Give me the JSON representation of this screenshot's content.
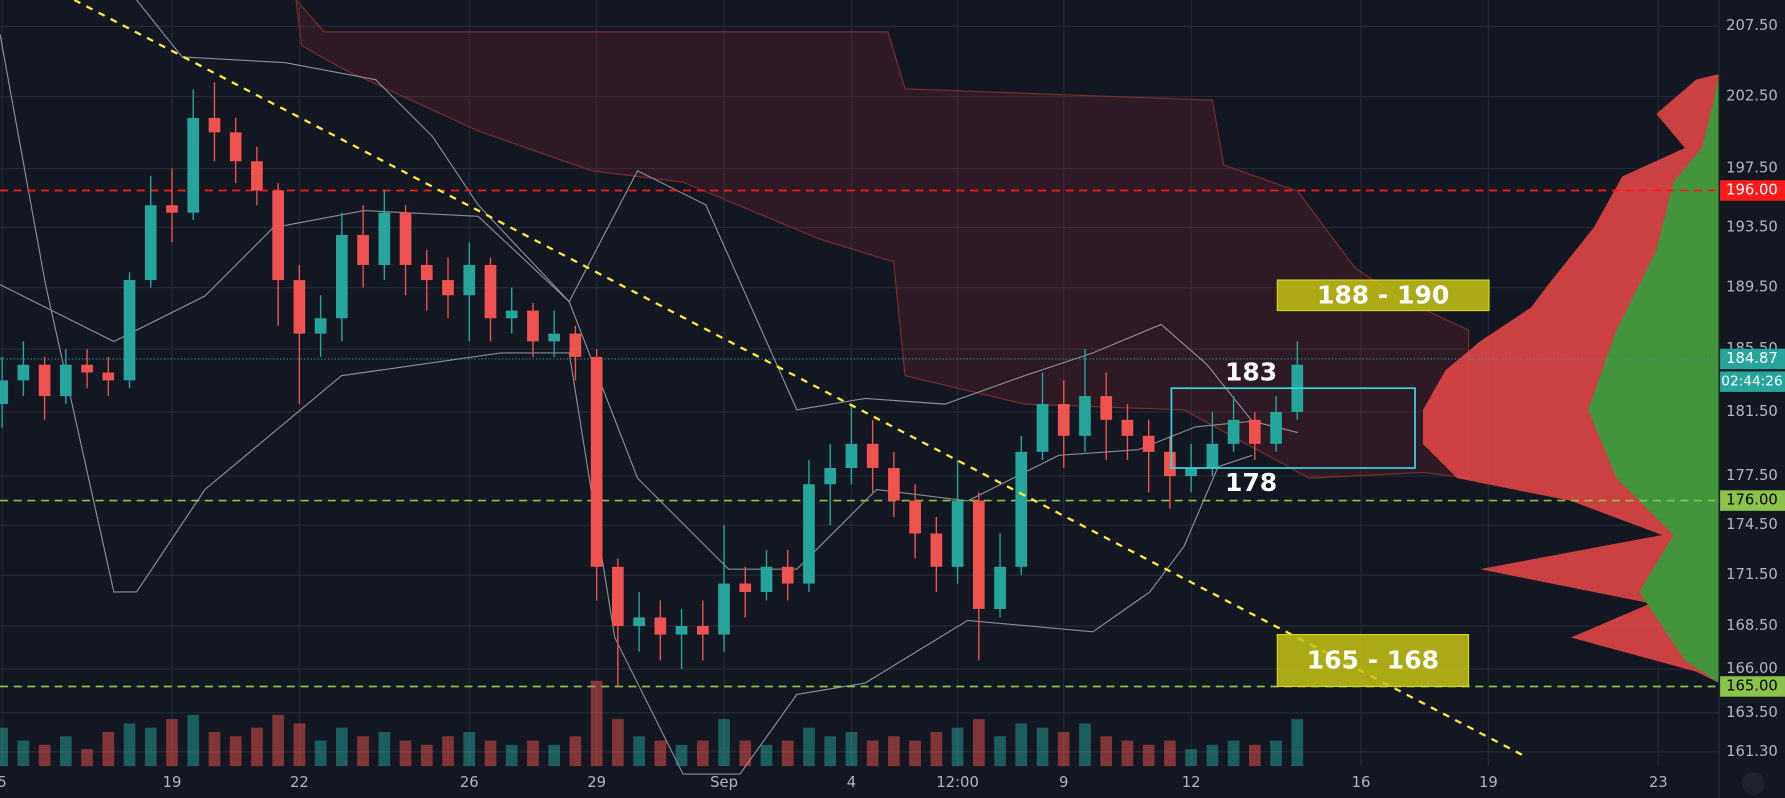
{
  "chart_data": {
    "type": "candlestick",
    "log_scale": true,
    "grid": true,
    "up_color": "#26a69a",
    "down_color": "#ef5350",
    "xlim": [
      -0.05,
      40.43
    ],
    "ylim": [
      160.5,
      209.4
    ],
    "xticks": [
      {
        "value": 0,
        "label": "5"
      },
      {
        "value": 4,
        "label": "19"
      },
      {
        "value": 7,
        "label": "22"
      },
      {
        "value": 11,
        "label": "26"
      },
      {
        "value": 14,
        "label": "29"
      },
      {
        "value": 17,
        "label": "Sep"
      },
      {
        "value": 20,
        "label": "4"
      },
      {
        "value": 22.5,
        "label": "12:00"
      },
      {
        "value": 25,
        "label": "9"
      },
      {
        "value": 28,
        "label": "12"
      },
      {
        "value": 32,
        "label": "16"
      },
      {
        "value": 35,
        "label": "19"
      },
      {
        "value": 39,
        "label": "23"
      }
    ],
    "yticks": [
      {
        "value": 207.5,
        "label": "207.50"
      },
      {
        "value": 202.5,
        "label": "202.50"
      },
      {
        "value": 197.5,
        "label": "197.50"
      },
      {
        "value": 193.5,
        "label": "193.50"
      },
      {
        "value": 189.5,
        "label": "189.50"
      },
      {
        "value": 185.5,
        "label": "185.50"
      },
      {
        "value": 181.5,
        "label": "181.50"
      },
      {
        "value": 177.5,
        "label": "177.50"
      },
      {
        "value": 174.5,
        "label": "174.50"
      },
      {
        "value": 171.5,
        "label": "171.50"
      },
      {
        "value": 168.5,
        "label": "168.50"
      },
      {
        "value": 166,
        "label": "166.00"
      },
      {
        "value": 163.5,
        "label": "163.50"
      },
      {
        "value": 161.3,
        "label": "161.30"
      }
    ],
    "candles": {
      "x": [
        0,
        0.5,
        1,
        1.5,
        2,
        2.5,
        3,
        3.5,
        4,
        4.5,
        5,
        5.5,
        6,
        6.5,
        7,
        7.5,
        8,
        8.5,
        9,
        9.5,
        10,
        10.5,
        11,
        11.5,
        12,
        12.5,
        13,
        13.5,
        14,
        14.5,
        15,
        15.5,
        16,
        16.5,
        17,
        17.5,
        18,
        18.5,
        19,
        19.5,
        20,
        20.5,
        21,
        21.5,
        22,
        22.5,
        23,
        23.5,
        24,
        24.5,
        25,
        25.5,
        26,
        26.5,
        27,
        27.5,
        28,
        28.5,
        29,
        29.5,
        30,
        30.5
      ],
      "open": [
        182,
        183.5,
        184.5,
        182.5,
        184.5,
        184,
        183.5,
        190,
        195,
        194.5,
        201,
        200,
        198,
        196,
        190,
        186.5,
        187.5,
        193,
        191,
        194.5,
        191,
        190,
        189,
        191,
        187.5,
        188,
        186,
        186.5,
        185,
        172,
        168.5,
        169,
        168,
        168.5,
        168,
        171,
        170.5,
        172,
        171,
        177,
        178,
        179.5,
        178,
        176,
        174,
        172,
        176,
        169.5,
        172,
        179,
        182,
        180,
        182.5,
        181,
        180,
        179,
        177.5,
        178,
        179.5,
        181,
        179.5,
        181.5
      ],
      "high": [
        185,
        186,
        185,
        185.5,
        185.5,
        185,
        190.5,
        197,
        197.5,
        203,
        203.5,
        201,
        199,
        196.5,
        191,
        189,
        194.5,
        195,
        196,
        195,
        192,
        191.5,
        192.5,
        191.5,
        189.5,
        188.5,
        188,
        187,
        185.5,
        172.5,
        170.5,
        170,
        169.5,
        170,
        174.5,
        172,
        173,
        173,
        178.5,
        179.5,
        182,
        181,
        179,
        177,
        175,
        178.5,
        176.5,
        174,
        180,
        184,
        183.5,
        185.5,
        184,
        182,
        181,
        180,
        179.5,
        181.5,
        182.5,
        181.5,
        182.5,
        186
      ],
      "low": [
        180.5,
        182.5,
        181,
        182,
        183,
        182.5,
        183,
        189.5,
        192.5,
        194,
        198,
        196.5,
        195,
        187,
        182,
        185,
        186,
        189.5,
        190,
        189,
        188,
        187.5,
        186,
        186,
        186.5,
        185,
        185,
        183.5,
        170,
        165,
        167,
        166.5,
        166,
        166.5,
        167,
        169,
        170,
        170,
        170.5,
        174.5,
        177,
        176.5,
        175,
        172.5,
        170.5,
        171,
        166.5,
        169,
        171.5,
        178.5,
        178,
        179,
        178.5,
        178.5,
        176.5,
        175.5,
        176.5,
        177.5,
        179,
        178.5,
        179,
        181
      ],
      "close": [
        183.5,
        184.5,
        182.5,
        184.5,
        184,
        183.5,
        190,
        195,
        194.5,
        201,
        200,
        198,
        196,
        190,
        186.5,
        187.5,
        193,
        191,
        194.5,
        191,
        190,
        189,
        191,
        187.5,
        188,
        186,
        186.5,
        185,
        172,
        168.5,
        169,
        168,
        168.5,
        168,
        171,
        170.5,
        172,
        171,
        177,
        178,
        179.5,
        178,
        176,
        174,
        172,
        176,
        169.5,
        172,
        179,
        182,
        180,
        182.5,
        181,
        180,
        179,
        177.5,
        178,
        179.5,
        181,
        179.5,
        181.5,
        184.5
      ],
      "volume": [
        45,
        30,
        25,
        35,
        20,
        40,
        50,
        45,
        55,
        60,
        40,
        35,
        45,
        60,
        50,
        30,
        45,
        35,
        40,
        30,
        25,
        35,
        40,
        30,
        25,
        30,
        25,
        35,
        100,
        55,
        35,
        30,
        25,
        30,
        55,
        30,
        25,
        30,
        45,
        35,
        40,
        30,
        35,
        30,
        40,
        45,
        55,
        35,
        50,
        45,
        40,
        50,
        35,
        30,
        25,
        30,
        20,
        25,
        30,
        25,
        30,
        55
      ]
    },
    "levels": [
      {
        "value": 196,
        "label": "196.00",
        "color": "#ff1a1a"
      },
      {
        "value": 176,
        "label": "176.00",
        "color": "#8bc34a"
      },
      {
        "value": 165,
        "label": "165.00",
        "color": "#8bc34a"
      }
    ],
    "price_line": {
      "value": 184.87,
      "label": "184.87",
      "countdown": "02:44:26",
      "color": "#26a69a"
    },
    "zones": [
      {
        "range": [
          188,
          190
        ],
        "label": "188 - 190"
      },
      {
        "range": [
          165,
          168
        ],
        "label": "165 - 168"
      }
    ],
    "range_box": {
      "range": [
        178,
        183
      ],
      "top_label": "183",
      "bottom_label": "178"
    },
    "trendline": [
      [
        1.7,
        209.4
      ],
      [
        35.9,
        161
      ]
    ]
  }
}
